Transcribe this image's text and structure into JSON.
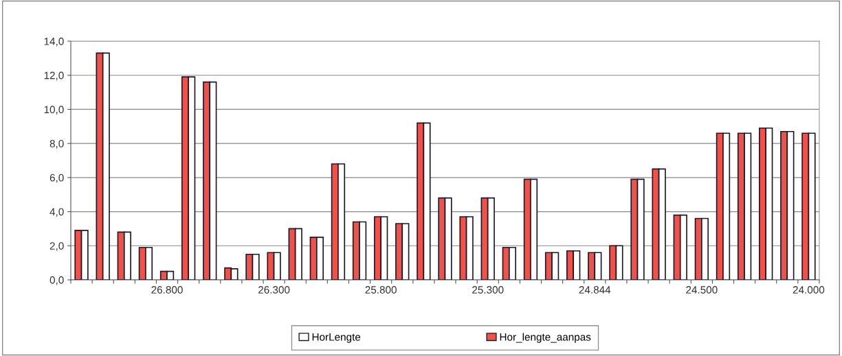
{
  "chart_data": {
    "type": "bar",
    "categories": [
      null,
      null,
      null,
      null,
      "26.800",
      null,
      null,
      null,
      null,
      "26.300",
      null,
      null,
      null,
      null,
      "25.800",
      null,
      null,
      null,
      null,
      "25.300",
      null,
      null,
      null,
      null,
      "24.844",
      null,
      null,
      null,
      null,
      "24.500",
      null,
      null,
      null,
      null,
      "24.000"
    ],
    "series": [
      {
        "name": "Hor_lengte_aanpas",
        "color": "#f0524a",
        "values": [
          2.9,
          13.3,
          2.8,
          1.9,
          0.5,
          11.9,
          11.6,
          0.7,
          1.5,
          1.6,
          3.0,
          2.5,
          6.8,
          3.4,
          3.7,
          3.3,
          9.2,
          4.8,
          3.7,
          4.8,
          1.9,
          5.9,
          1.6,
          1.7,
          1.6,
          2.0,
          5.9,
          6.5,
          3.8,
          3.6,
          8.6,
          8.6,
          8.9,
          8.7,
          8.6
        ]
      },
      {
        "name": "HorLengte",
        "color": "#ffffff",
        "values": [
          2.9,
          13.3,
          2.8,
          1.9,
          0.5,
          11.9,
          11.6,
          0.65,
          1.5,
          1.6,
          3.0,
          2.5,
          6.8,
          3.4,
          3.7,
          3.3,
          9.2,
          4.8,
          3.7,
          4.8,
          1.9,
          5.9,
          1.6,
          1.7,
          1.6,
          2.0,
          5.9,
          6.5,
          3.8,
          3.6,
          8.6,
          8.6,
          8.9,
          8.7,
          8.6
        ]
      }
    ],
    "ylim": [
      0,
      14
    ],
    "yticks": [
      {
        "value": 0,
        "label": "0,0"
      },
      {
        "value": 2,
        "label": "2,0"
      },
      {
        "value": 4,
        "label": "4,0"
      },
      {
        "value": 6,
        "label": "6,0"
      },
      {
        "value": 8,
        "label": "8,0"
      },
      {
        "value": 10,
        "label": "10,0"
      },
      {
        "value": 12,
        "label": "12,0"
      },
      {
        "value": 14,
        "label": "14,0"
      }
    ],
    "grid": "y",
    "legend": "bottom"
  }
}
